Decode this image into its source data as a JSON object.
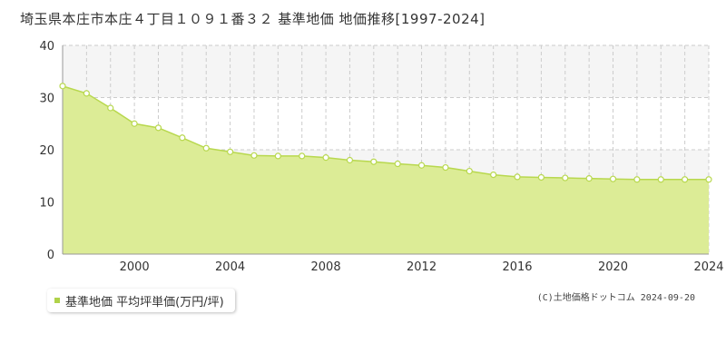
{
  "title": "埼玉県本庄市本庄４丁目１０９１番３２ 基準地価 地価推移[1997-2024]",
  "legend": {
    "label": "基準地価 平均坪単価(万円/坪)"
  },
  "credit": "(C)土地価格ドットコム 2024-09-20",
  "colors": {
    "fill": "#dcec96",
    "line": "#b8d84e",
    "point_fill": "#ffffff",
    "band": "#f5f5f5",
    "grid": "#cccccc",
    "axis": "#999999"
  },
  "chart_data": {
    "type": "area",
    "x": [
      1997,
      1998,
      1999,
      2000,
      2001,
      2002,
      2003,
      2004,
      2005,
      2006,
      2007,
      2008,
      2009,
      2010,
      2011,
      2012,
      2013,
      2014,
      2015,
      2016,
      2017,
      2018,
      2019,
      2020,
      2021,
      2022,
      2023,
      2024
    ],
    "series": [
      {
        "values": [
          32.2,
          30.8,
          28.0,
          25.0,
          24.2,
          22.3,
          20.3,
          19.6,
          18.9,
          18.8,
          18.8,
          18.5,
          18.0,
          17.7,
          17.3,
          17.0,
          16.6,
          15.9,
          15.2,
          14.8,
          14.7,
          14.6,
          14.5,
          14.4,
          14.3,
          14.3,
          14.3,
          14.3
        ]
      }
    ],
    "xlim": [
      1997,
      2024
    ],
    "ylim": [
      0,
      40
    ],
    "yticks": [
      0,
      10,
      20,
      30,
      40
    ],
    "xticks": [
      2000,
      2004,
      2008,
      2012,
      2016,
      2020,
      2024
    ],
    "grid": true
  }
}
